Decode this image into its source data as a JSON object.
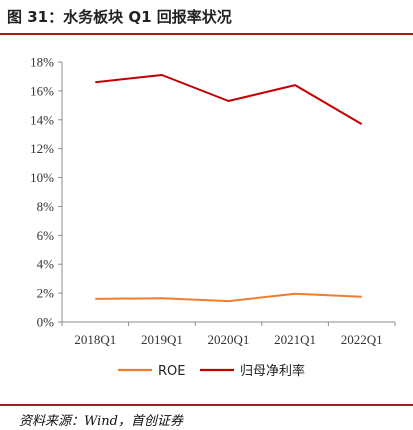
{
  "header": {
    "title": "图 31：水务板块 Q1 回报率状况"
  },
  "footer": {
    "source": "资料来源：Wind，首创证券"
  },
  "colors": {
    "accent": "#a31a1a",
    "roe": "#ed7d31",
    "net_margin": "#c00000"
  },
  "chart_data": {
    "type": "line",
    "categories": [
      "2018Q1",
      "2019Q1",
      "2020Q1",
      "2021Q1",
      "2022Q1"
    ],
    "series": [
      {
        "name": "ROE",
        "values": [
          1.6,
          1.65,
          1.45,
          1.95,
          1.75
        ]
      },
      {
        "name": "归母净利率",
        "values": [
          16.6,
          17.1,
          15.3,
          16.4,
          13.7
        ]
      }
    ],
    "yticks": [
      "0%",
      "2%",
      "4%",
      "6%",
      "8%",
      "10%",
      "12%",
      "14%",
      "16%",
      "18%"
    ],
    "ylim": [
      0,
      18
    ],
    "grid": false,
    "legend": "bottom"
  }
}
